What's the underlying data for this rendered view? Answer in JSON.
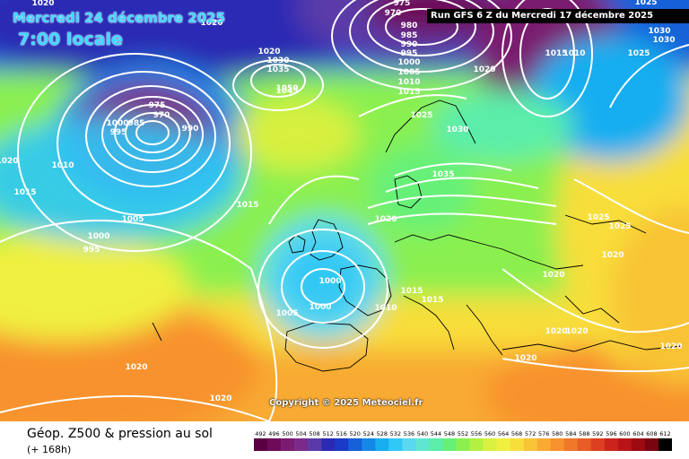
{
  "header": {
    "date_title": "Mercredi 24 décembre 2025",
    "time_title": "7:00 locale",
    "run_label": "Run GFS 6 Z du Mercredi 17 décembre 2025"
  },
  "copyright": "Copyright © 2025 Meteociel.fr",
  "footer": {
    "title": "Géop. Z500 & pression au sol",
    "subtitle": "(+ 168h)"
  },
  "legend": {
    "ticks": [
      "492",
      "496",
      "500",
      "504",
      "508",
      "512",
      "516",
      "520",
      "524",
      "528",
      "532",
      "536",
      "540",
      "544",
      "548",
      "552",
      "556",
      "560",
      "564",
      "568",
      "572",
      "576",
      "580",
      "584",
      "588",
      "592",
      "596",
      "600",
      "604",
      "608",
      "612"
    ],
    "colors": [
      "#5a0040",
      "#6e0a58",
      "#7a1a70",
      "#7a2a8a",
      "#5a3aa8",
      "#2a2ab4",
      "#1a3ac8",
      "#1460d8",
      "#1488e6",
      "#18aef0",
      "#30c8f4",
      "#5ad8f0",
      "#60e6d0",
      "#5aeeaa",
      "#66f078",
      "#8af050",
      "#b4f040",
      "#d8f040",
      "#f0f040",
      "#f8de3a",
      "#f8c436",
      "#f8aa32",
      "#f8922e",
      "#f0782a",
      "#e85c26",
      "#dc4020",
      "#cc241c",
      "#b81418",
      "#9c0a12",
      "#7a0410",
      "#000000"
    ]
  },
  "pressure_labels": [
    {
      "text": "1020"
    },
    {
      "text": "1020"
    },
    {
      "text": "1025"
    },
    {
      "text": "975"
    },
    {
      "text": "970"
    },
    {
      "text": "980"
    },
    {
      "text": "985"
    },
    {
      "text": "990"
    },
    {
      "text": "995"
    },
    {
      "text": "1000"
    },
    {
      "text": "1005"
    },
    {
      "text": "1010"
    },
    {
      "text": "1015"
    },
    {
      "text": "1020"
    },
    {
      "text": "1030"
    },
    {
      "text": "1030"
    },
    {
      "text": "1025"
    },
    {
      "text": "1015"
    },
    {
      "text": "1010"
    },
    {
      "text": "1020"
    },
    {
      "text": "1030"
    },
    {
      "text": "1035"
    },
    {
      "text": "1045"
    },
    {
      "text": "1050"
    },
    {
      "text": "975"
    },
    {
      "text": "970"
    },
    {
      "text": "1000"
    },
    {
      "text": "985"
    },
    {
      "text": "995"
    },
    {
      "text": "990"
    },
    {
      "text": "1010"
    },
    {
      "text": "1015"
    },
    {
      "text": "1005"
    },
    {
      "text": "1000"
    },
    {
      "text": "995"
    },
    {
      "text": "1015"
    },
    {
      "text": "1025"
    },
    {
      "text": "1030"
    },
    {
      "text": "1035"
    },
    {
      "text": "1020"
    },
    {
      "text": "1000"
    },
    {
      "text": "1000"
    },
    {
      "text": "1005"
    },
    {
      "text": "1010"
    },
    {
      "text": "1015"
    },
    {
      "text": "1015"
    },
    {
      "text": "1020"
    },
    {
      "text": "1025"
    },
    {
      "text": "1025"
    },
    {
      "text": "1020"
    },
    {
      "text": "1020"
    },
    {
      "text": "1020"
    },
    {
      "text": "1020"
    },
    {
      "text": "1020"
    },
    {
      "text": "1020"
    },
    {
      "text": "1020"
    },
    {
      "text": "1020"
    }
  ]
}
